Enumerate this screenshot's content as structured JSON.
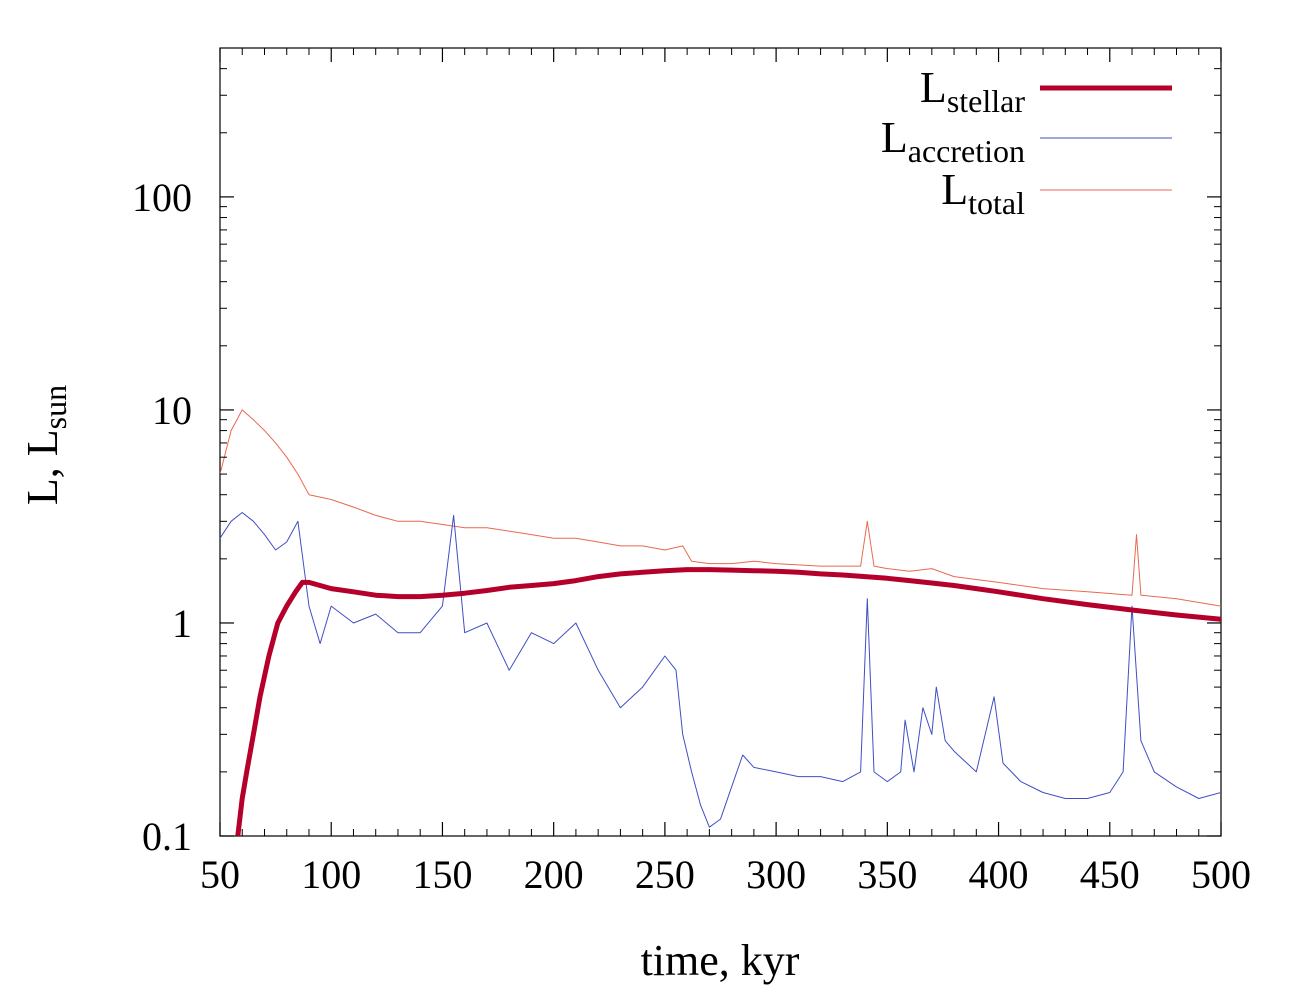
{
  "chart_data": {
    "type": "line",
    "xlabel": "time, kyr",
    "ylabel_main": "L, L",
    "ylabel_sub": "sun",
    "x_scale": "linear",
    "y_scale": "log",
    "xlim": [
      50,
      500
    ],
    "ylim": [
      0.1,
      500
    ],
    "x_ticks": [
      50,
      100,
      150,
      200,
      250,
      300,
      350,
      400,
      450,
      500
    ],
    "x_tick_labels": [
      "50",
      "100",
      "150",
      "200",
      "250",
      "300",
      "350",
      "400",
      "450",
      "500"
    ],
    "y_ticks": [
      0.1,
      1,
      10,
      100
    ],
    "y_tick_labels": [
      "0.1",
      "1",
      "10",
      "100"
    ],
    "grid": false,
    "legend_position": "top-right",
    "series": [
      {
        "name": "L",
        "name_sub": "stellar",
        "color": "#b4002a",
        "x": [
          58,
          60,
          62,
          65,
          68,
          72,
          76,
          80,
          84,
          87,
          90,
          100,
          110,
          120,
          130,
          140,
          150,
          160,
          170,
          180,
          190,
          200,
          210,
          220,
          230,
          240,
          250,
          260,
          270,
          280,
          290,
          300,
          310,
          320,
          330,
          340,
          350,
          360,
          370,
          380,
          390,
          400,
          420,
          440,
          460,
          480,
          500
        ],
        "y": [
          0.1,
          0.15,
          0.2,
          0.3,
          0.45,
          0.7,
          1.0,
          1.2,
          1.4,
          1.55,
          1.55,
          1.45,
          1.4,
          1.35,
          1.33,
          1.33,
          1.35,
          1.38,
          1.42,
          1.47,
          1.5,
          1.53,
          1.58,
          1.65,
          1.7,
          1.73,
          1.76,
          1.78,
          1.78,
          1.77,
          1.76,
          1.75,
          1.73,
          1.7,
          1.68,
          1.65,
          1.62,
          1.58,
          1.54,
          1.5,
          1.45,
          1.4,
          1.3,
          1.22,
          1.15,
          1.09,
          1.04
        ]
      },
      {
        "name": "L",
        "name_sub": "accretion",
        "color": "#3f4fc4",
        "x": [
          50,
          55,
          60,
          65,
          70,
          75,
          80,
          85,
          90,
          95,
          100,
          110,
          120,
          130,
          140,
          150,
          155,
          160,
          170,
          180,
          190,
          200,
          210,
          220,
          230,
          240,
          250,
          255,
          258,
          262,
          266,
          270,
          275,
          280,
          285,
          290,
          300,
          310,
          320,
          330,
          338,
          341,
          344,
          350,
          356,
          358,
          362,
          366,
          370,
          372,
          376,
          380,
          390,
          398,
          402,
          410,
          420,
          430,
          440,
          450,
          456,
          460,
          464,
          470,
          480,
          490,
          500
        ],
        "y": [
          2.5,
          3.0,
          3.3,
          3.0,
          2.6,
          2.2,
          2.4,
          3.0,
          1.2,
          0.8,
          1.2,
          1.0,
          1.1,
          0.9,
          0.9,
          1.2,
          3.2,
          0.9,
          1.0,
          0.6,
          0.9,
          0.8,
          1.0,
          0.6,
          0.4,
          0.5,
          0.7,
          0.6,
          0.3,
          0.2,
          0.14,
          0.11,
          0.12,
          0.17,
          0.24,
          0.21,
          0.2,
          0.19,
          0.19,
          0.18,
          0.2,
          1.3,
          0.2,
          0.18,
          0.2,
          0.35,
          0.2,
          0.4,
          0.3,
          0.5,
          0.28,
          0.25,
          0.2,
          0.45,
          0.22,
          0.18,
          0.16,
          0.15,
          0.15,
          0.16,
          0.2,
          1.2,
          0.28,
          0.2,
          0.17,
          0.15,
          0.16
        ]
      },
      {
        "name": "L",
        "name_sub": "total",
        "color": "#e86a4f",
        "x": [
          50,
          55,
          60,
          65,
          70,
          75,
          80,
          85,
          90,
          100,
          110,
          120,
          130,
          140,
          150,
          160,
          170,
          180,
          190,
          200,
          210,
          220,
          230,
          240,
          250,
          258,
          262,
          270,
          280,
          290,
          300,
          320,
          338,
          341,
          344,
          350,
          360,
          370,
          380,
          390,
          400,
          420,
          440,
          460,
          462,
          464,
          480,
          500
        ],
        "y": [
          5,
          8,
          10,
          9,
          8,
          7,
          6,
          5,
          4,
          3.8,
          3.5,
          3.2,
          3.0,
          3.0,
          2.9,
          2.8,
          2.8,
          2.7,
          2.6,
          2.5,
          2.5,
          2.4,
          2.3,
          2.3,
          2.2,
          2.3,
          1.95,
          1.9,
          1.9,
          1.95,
          1.9,
          1.85,
          1.85,
          3.0,
          1.85,
          1.8,
          1.75,
          1.8,
          1.65,
          1.6,
          1.55,
          1.45,
          1.4,
          1.35,
          2.6,
          1.35,
          1.3,
          1.2
        ]
      }
    ]
  }
}
